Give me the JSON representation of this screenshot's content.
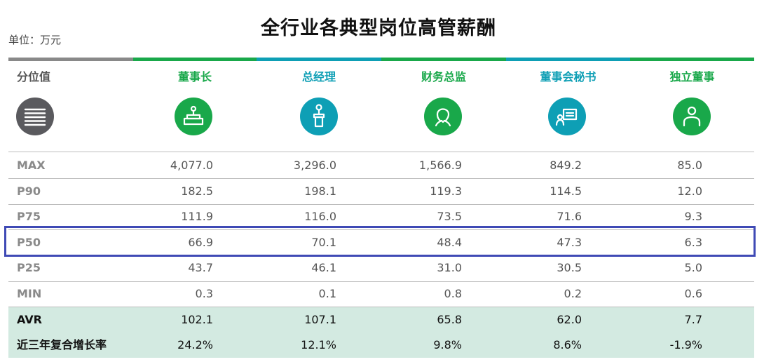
{
  "title": "全行业各典型岗位高管薪酬",
  "unit_label": "单位：万元",
  "colors": {
    "green": "#19a84a",
    "teal": "#0e9fb5",
    "gray": "#898989",
    "highlight": "#3f4ab5"
  },
  "chart_data": {
    "type": "table",
    "title": "全行业各典型岗位高管薪酬",
    "row_header": "分位值",
    "columns": [
      {
        "name": "董事长",
        "icon": "podium-icon",
        "color": "#19a84a"
      },
      {
        "name": "总经理",
        "icon": "lectern-speaker-icon",
        "color": "#0e9fb5"
      },
      {
        "name": "财务总监",
        "icon": "person-profile-icon",
        "color": "#19a84a"
      },
      {
        "name": "董事会秘书",
        "icon": "speech-board-icon",
        "color": "#0e9fb5"
      },
      {
        "name": "独立董事",
        "icon": "person-icon",
        "color": "#19a84a"
      }
    ],
    "rows": [
      {
        "label": "MAX",
        "values": [
          "4,077.0",
          "3,296.0",
          "1,566.9",
          "849.2",
          "85.0"
        ]
      },
      {
        "label": "P90",
        "values": [
          "182.5",
          "198.1",
          "119.3",
          "114.5",
          "12.0"
        ]
      },
      {
        "label": "P75",
        "values": [
          "111.9",
          "116.0",
          "73.5",
          "71.6",
          "9.3"
        ]
      },
      {
        "label": "P50",
        "values": [
          "66.9",
          "70.1",
          "48.4",
          "47.3",
          "6.3"
        ],
        "highlighted": true
      },
      {
        "label": "P25",
        "values": [
          "43.7",
          "46.1",
          "31.0",
          "30.5",
          "5.0"
        ]
      },
      {
        "label": "MIN",
        "values": [
          "0.3",
          "0.1",
          "0.8",
          "0.2",
          "0.6"
        ]
      },
      {
        "label": "AVR",
        "values": [
          "102.1",
          "107.1",
          "65.8",
          "62.0",
          "7.7"
        ],
        "shaded": true
      },
      {
        "label": "近三年复合增长率",
        "values": [
          "24.2%",
          "12.1%",
          "9.8%",
          "8.6%",
          "-1.9%"
        ],
        "shaded": true
      }
    ]
  }
}
